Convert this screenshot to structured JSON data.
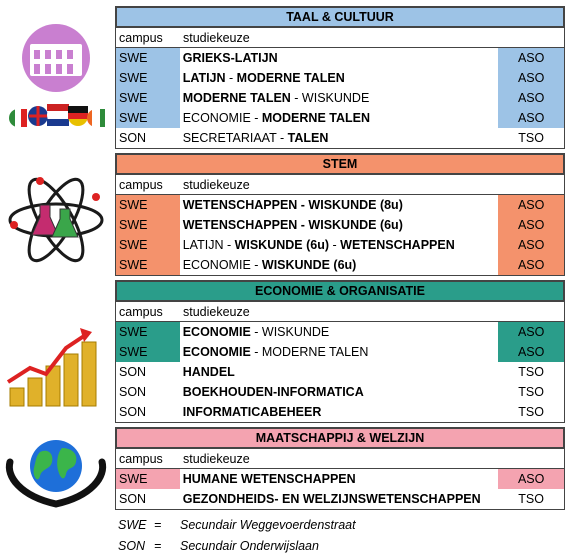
{
  "column_headers": {
    "campus": "campus",
    "choice": "studiekeuze"
  },
  "sections": [
    {
      "title": "TAAL & CULTUUR",
      "color": "#9dc3e6",
      "icon": "colosseum-flags-icon",
      "rows": [
        {
          "campus": "SWE",
          "type": "ASO",
          "parts": [
            {
              "t": "GRIEKS-LATIJN",
              "b": true
            }
          ],
          "hl": true
        },
        {
          "campus": "SWE",
          "type": "ASO",
          "parts": [
            {
              "t": "LATIJN",
              "b": true
            },
            {
              "t": " - ",
              "b": false
            },
            {
              "t": "MODERNE TALEN",
              "b": true
            }
          ],
          "hl": true
        },
        {
          "campus": "SWE",
          "type": "ASO",
          "parts": [
            {
              "t": "MODERNE TALEN",
              "b": true
            },
            {
              "t": " - WISKUNDE",
              "b": false
            }
          ],
          "hl": true
        },
        {
          "campus": "SWE",
          "type": "ASO",
          "parts": [
            {
              "t": "ECONOMIE - ",
              "b": false
            },
            {
              "t": "MODERNE TALEN",
              "b": true
            }
          ],
          "hl": true
        },
        {
          "campus": "SON",
          "type": "TSO",
          "parts": [
            {
              "t": "SECRETARIAAT - ",
              "b": false
            },
            {
              "t": "TALEN",
              "b": true
            }
          ],
          "hl": false
        }
      ]
    },
    {
      "title": "STEM",
      "color": "#f4926c",
      "icon": "atom-science-icon",
      "rows": [
        {
          "campus": "SWE",
          "type": "ASO",
          "parts": [
            {
              "t": "WETENSCHAPPEN - WISKUNDE (8u)",
              "b": true
            }
          ],
          "hl": true
        },
        {
          "campus": "SWE",
          "type": "ASO",
          "parts": [
            {
              "t": "WETENSCHAPPEN - WISKUNDE (6u)",
              "b": true
            }
          ],
          "hl": true
        },
        {
          "campus": "SWE",
          "type": "ASO",
          "parts": [
            {
              "t": "LATIJN - ",
              "b": false
            },
            {
              "t": "WISKUNDE (6u)",
              "b": true
            },
            {
              "t": " - ",
              "b": false
            },
            {
              "t": "WETENSCHAPPEN",
              "b": true
            }
          ],
          "hl": true
        },
        {
          "campus": "SWE",
          "type": "ASO",
          "parts": [
            {
              "t": "ECONOMIE - ",
              "b": false
            },
            {
              "t": "WISKUNDE (6u)",
              "b": true
            }
          ],
          "hl": true
        }
      ]
    },
    {
      "title": "ECONOMIE & ORGANISATIE",
      "color": "#2a9d8a",
      "icon": "coins-growth-icon",
      "rows": [
        {
          "campus": "SWE",
          "type": "ASO",
          "parts": [
            {
              "t": "ECONOMIE",
              "b": true
            },
            {
              "t": " - WISKUNDE",
              "b": false
            }
          ],
          "hl": true
        },
        {
          "campus": "SWE",
          "type": "ASO",
          "parts": [
            {
              "t": "ECONOMIE",
              "b": true
            },
            {
              "t": " - MODERNE TALEN",
              "b": false
            }
          ],
          "hl": true
        },
        {
          "campus": "SON",
          "type": "TSO",
          "parts": [
            {
              "t": "HANDEL",
              "b": true
            }
          ],
          "hl": false
        },
        {
          "campus": "SON",
          "type": "TSO",
          "parts": [
            {
              "t": "BOEKHOUDEN-INFORMATICA",
              "b": true
            }
          ],
          "hl": false
        },
        {
          "campus": "SON",
          "type": "TSO",
          "parts": [
            {
              "t": "INFORMATICABEHEER",
              "b": true
            }
          ],
          "hl": false
        }
      ]
    },
    {
      "title": "MAATSCHAPPIJ & WELZIJN",
      "color": "#f4a3b0",
      "icon": "globe-hands-icon",
      "rows": [
        {
          "campus": "SWE",
          "type": "ASO",
          "parts": [
            {
              "t": "HUMANE WETENSCHAPPEN",
              "b": true
            }
          ],
          "hl": true
        },
        {
          "campus": "SON",
          "type": "TSO",
          "parts": [
            {
              "t": "GEZONDHEIDS- EN WELZIJNSWETENSCHAPPEN",
              "b": true
            }
          ],
          "hl": false
        }
      ]
    }
  ],
  "legend": [
    {
      "code": "SWE",
      "eq": "=",
      "name": "Secundair Weggevoerdenstraat"
    },
    {
      "code": "SON",
      "eq": "=",
      "name": "Secundair Onderwijslaan"
    }
  ]
}
